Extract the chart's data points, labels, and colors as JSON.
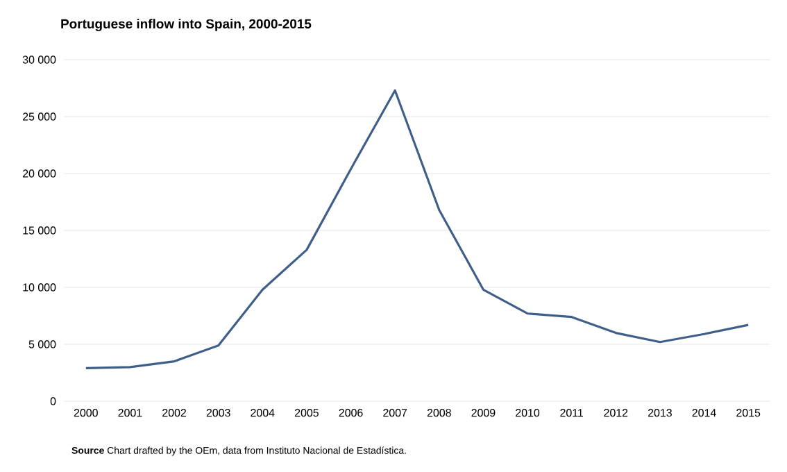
{
  "chart_data": {
    "type": "line",
    "title": "Portuguese  inflow into Spain, 2000-2015",
    "categories": [
      "2000",
      "2001",
      "2002",
      "2003",
      "2004",
      "2005",
      "2006",
      "2007",
      "2008",
      "2009",
      "2010",
      "2011",
      "2012",
      "2013",
      "2014",
      "2015"
    ],
    "series": [
      {
        "color": "#3f5f8a",
        "values": [
          2900,
          3000,
          3500,
          4900,
          9800,
          13300,
          20400,
          27300,
          16800,
          9800,
          7700,
          7400,
          6000,
          5200,
          5900,
          6700
        ]
      }
    ],
    "ylim": [
      0,
      30000
    ],
    "yticks": [
      0,
      {
        "value": 5000,
        "label": "5 000"
      },
      {
        "value": 10000,
        "label": "10 000"
      },
      {
        "value": 15000,
        "label": "15 000"
      },
      {
        "value": 20000,
        "label": "20 000"
      },
      {
        "value": 25000,
        "label": "25 000"
      },
      {
        "value": 30000,
        "label": "30 000"
      }
    ],
    "grid": "y",
    "marker": "none",
    "line_style": "solid",
    "annotations": [
      "**Source**  Chart drafted by the OEm, data from Instituto Nacional de Estadística."
    ]
  }
}
